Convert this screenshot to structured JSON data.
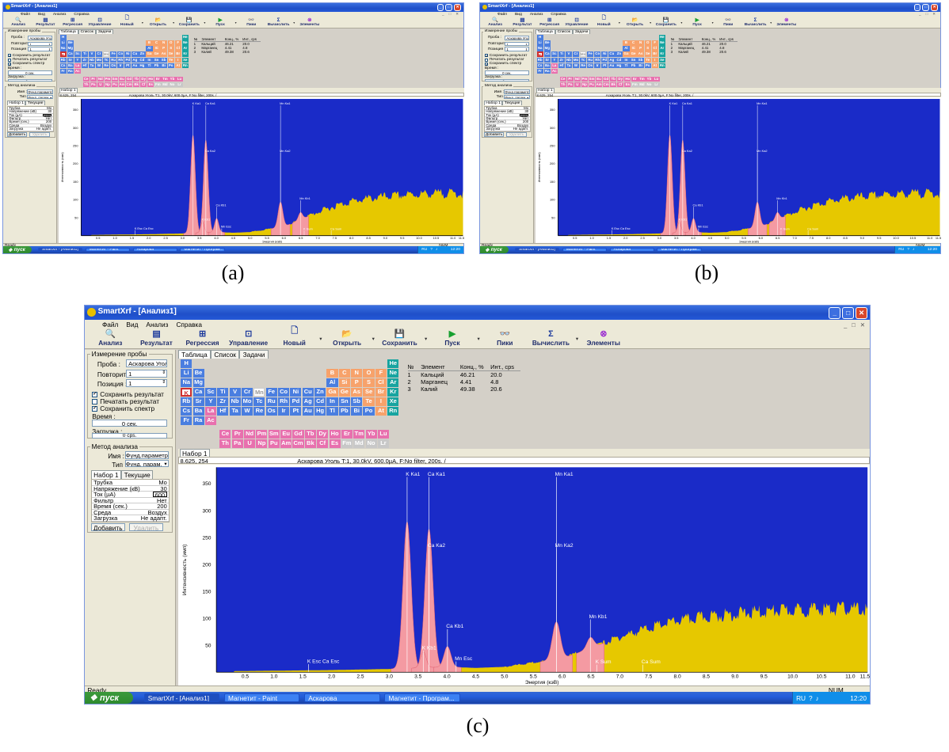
{
  "captions": {
    "a": "(a)",
    "b": "(b)",
    "c": "(c)"
  },
  "app": {
    "title": "SmartXrf - [Анализ1]",
    "window_buttons": {
      "minimize": "_",
      "maximize": "□",
      "close": "✕"
    },
    "mdi_controls": [
      "_",
      "□",
      "✕"
    ],
    "menu": [
      "Файл",
      "Вид",
      "Анализ",
      "Справка"
    ],
    "toolbar": [
      {
        "label": "Анализ",
        "icon": "magnifier-icon",
        "glyph": "🔍",
        "dropdown": false
      },
      {
        "label": "Результат",
        "icon": "results-icon",
        "glyph": "▤",
        "dropdown": false
      },
      {
        "label": "Регрессия",
        "icon": "regression-icon",
        "glyph": "⊞",
        "dropdown": false
      },
      {
        "label": "Управление",
        "icon": "control-icon",
        "glyph": "⊡",
        "dropdown": false
      },
      {
        "label": "Новый",
        "icon": "new-document-icon",
        "glyph": "🗋",
        "dropdown": true
      },
      {
        "label": "Открыть",
        "icon": "open-folder-icon",
        "glyph": "📂",
        "dropdown": true
      },
      {
        "label": "Сохранить",
        "icon": "save-icon",
        "glyph": "💾",
        "dropdown": true
      },
      {
        "label": "Пуск",
        "icon": "play-icon",
        "glyph": "▶",
        "dropdown": true
      },
      {
        "label": "Пики",
        "icon": "binoculars-icon",
        "glyph": "👓",
        "dropdown": false
      },
      {
        "label": "Вычислить",
        "icon": "sigma-icon",
        "glyph": "Σ",
        "dropdown": true
      },
      {
        "label": "Элементы",
        "icon": "elements-icon",
        "glyph": "⊗",
        "dropdown": false
      }
    ],
    "measure": {
      "group_title": "Измерение пробы",
      "sample_label": "Проба :",
      "sample_value": "Аскарова Уголь",
      "repeat_label": "Повторить :",
      "repeat_value": "1",
      "position_label": "Позиция :",
      "position_value": "1",
      "save_result": {
        "label": "Сохранить результат",
        "checked": true
      },
      "print_result": {
        "label": "Печатать результат",
        "checked": false
      },
      "save_spectrum": {
        "label": "Сохранить спектр",
        "checked": true
      },
      "time_label": "Время :",
      "time_value": "0 сек.",
      "load_label": "Загрузка :",
      "load_value": "0 cps."
    },
    "method": {
      "group_title": "Метод анализа",
      "name_label": "Имя :",
      "name_value": "Фунд.параметр",
      "type_label": "Тип :",
      "type_value": "Фунд. парам.",
      "tabs": [
        "Набор 1",
        "Текущие"
      ],
      "params": [
        {
          "label": "Трубка",
          "value": "Mo"
        },
        {
          "label": "Напряжение (кВ)",
          "value": "30"
        },
        {
          "label": "Ток (µA)",
          "value": "600"
        },
        {
          "label": "Фильтр",
          "value": "Нет"
        },
        {
          "label": "Время (сек.)",
          "value": "200"
        },
        {
          "label": "Среда",
          "value": "Воздух"
        },
        {
          "label": "Загрузка",
          "value": "Не адапт."
        }
      ],
      "add_button": "Добавить",
      "delete_button": "Удалить"
    },
    "main_tabs": [
      "Таблица",
      "Список",
      "Задачи"
    ],
    "periodic": {
      "main": [
        {
          "s": "H",
          "r": 0,
          "c": 0,
          "k": "blue"
        },
        {
          "s": "He",
          "r": 0,
          "c": 17,
          "k": "teal"
        },
        {
          "s": "Li",
          "r": 1,
          "c": 0,
          "k": "blue"
        },
        {
          "s": "Be",
          "r": 1,
          "c": 1,
          "k": "blue"
        },
        {
          "s": "B",
          "r": 1,
          "c": 12,
          "k": "orange"
        },
        {
          "s": "C",
          "r": 1,
          "c": 13,
          "k": "orange"
        },
        {
          "s": "N",
          "r": 1,
          "c": 14,
          "k": "orange"
        },
        {
          "s": "O",
          "r": 1,
          "c": 15,
          "k": "orange"
        },
        {
          "s": "F",
          "r": 1,
          "c": 16,
          "k": "orange"
        },
        {
          "s": "Ne",
          "r": 1,
          "c": 17,
          "k": "teal"
        },
        {
          "s": "Na",
          "r": 2,
          "c": 0,
          "k": "blue"
        },
        {
          "s": "Mg",
          "r": 2,
          "c": 1,
          "k": "blue"
        },
        {
          "s": "Al",
          "r": 2,
          "c": 12,
          "k": "blue"
        },
        {
          "s": "Si",
          "r": 2,
          "c": 13,
          "k": "orange"
        },
        {
          "s": "P",
          "s2": "",
          "r": 2,
          "c": 14,
          "k": "orange"
        },
        {
          "s": "S",
          "r": 2,
          "c": 15,
          "k": "orange"
        },
        {
          "s": "Cl",
          "r": 2,
          "c": 16,
          "k": "orange"
        },
        {
          "s": "Ar",
          "r": 2,
          "c": 17,
          "k": "teal"
        },
        {
          "s": "K",
          "r": 3,
          "c": 0,
          "k": "sel"
        },
        {
          "s": "Ca",
          "r": 3,
          "c": 1,
          "k": "blue"
        },
        {
          "s": "Sc",
          "r": 3,
          "c": 2,
          "k": "blue"
        },
        {
          "s": "Ti",
          "r": 3,
          "c": 3,
          "k": "blue"
        },
        {
          "s": "V",
          "r": 3,
          "c": 4,
          "k": "blue"
        },
        {
          "s": "Cr",
          "r": 3,
          "c": 5,
          "k": "blue"
        },
        {
          "s": "Mn",
          "r": 3,
          "c": 6,
          "k": "white"
        },
        {
          "s": "Fe",
          "r": 3,
          "c": 7,
          "k": "blue"
        },
        {
          "s": "Co",
          "r": 3,
          "c": 8,
          "k": "blue"
        },
        {
          "s": "Ni",
          "r": 3,
          "c": 9,
          "k": "blue"
        },
        {
          "s": "Cu",
          "r": 3,
          "c": 10,
          "k": "blue"
        },
        {
          "s": "Zn",
          "r": 3,
          "c": 11,
          "k": "blue"
        },
        {
          "s": "Ga",
          "r": 3,
          "c": 12,
          "k": "orange"
        },
        {
          "s": "Ge",
          "r": 3,
          "c": 13,
          "k": "orange"
        },
        {
          "s": "As",
          "r": 3,
          "c": 14,
          "k": "orange"
        },
        {
          "s": "Se",
          "r": 3,
          "c": 15,
          "k": "orange"
        },
        {
          "s": "Br",
          "r": 3,
          "c": 16,
          "k": "orange"
        },
        {
          "s": "Kr",
          "r": 3,
          "c": 17,
          "k": "teal"
        },
        {
          "s": "Rb",
          "r": 4,
          "c": 0,
          "k": "blue"
        },
        {
          "s": "Sr",
          "r": 4,
          "c": 1,
          "k": "blue"
        },
        {
          "s": "Y",
          "r": 4,
          "c": 2,
          "k": "blue"
        },
        {
          "s": "Zr",
          "r": 4,
          "c": 3,
          "k": "blue"
        },
        {
          "s": "Nb",
          "r": 4,
          "c": 4,
          "k": "blue"
        },
        {
          "s": "Mo",
          "r": 4,
          "c": 5,
          "k": "blue"
        },
        {
          "s": "Tc",
          "r": 4,
          "c": 6,
          "k": "blue"
        },
        {
          "s": "Ru",
          "r": 4,
          "c": 7,
          "k": "blue"
        },
        {
          "s": "Rh",
          "r": 4,
          "c": 8,
          "k": "blue"
        },
        {
          "s": "Pd",
          "r": 4,
          "c": 9,
          "k": "blue"
        },
        {
          "s": "Ag",
          "r": 4,
          "c": 10,
          "k": "blue"
        },
        {
          "s": "Cd",
          "r": 4,
          "c": 11,
          "k": "blue"
        },
        {
          "s": "In",
          "r": 4,
          "c": 12,
          "k": "blue"
        },
        {
          "s": "Sn",
          "r": 4,
          "c": 13,
          "k": "blue"
        },
        {
          "s": "Sb",
          "r": 4,
          "c": 14,
          "k": "blue"
        },
        {
          "s": "Te",
          "r": 4,
          "c": 15,
          "k": "orange"
        },
        {
          "s": "I",
          "r": 4,
          "c": 16,
          "k": "orange"
        },
        {
          "s": "Xe",
          "r": 4,
          "c": 17,
          "k": "teal"
        },
        {
          "s": "Cs",
          "r": 5,
          "c": 0,
          "k": "blue"
        },
        {
          "s": "Ba",
          "r": 5,
          "c": 1,
          "k": "blue"
        },
        {
          "s": "La",
          "r": 5,
          "c": 2,
          "k": "pink"
        },
        {
          "s": "Hf",
          "r": 5,
          "c": 3,
          "k": "blue"
        },
        {
          "s": "Ta",
          "r": 5,
          "c": 4,
          "k": "blue"
        },
        {
          "s": "W",
          "r": 5,
          "c": 5,
          "k": "blue"
        },
        {
          "s": "Re",
          "r": 5,
          "c": 6,
          "k": "blue"
        },
        {
          "s": "Os",
          "r": 5,
          "c": 7,
          "k": "blue"
        },
        {
          "s": "Ir",
          "r": 5,
          "c": 8,
          "k": "blue"
        },
        {
          "s": "Pt",
          "r": 5,
          "c": 9,
          "k": "blue"
        },
        {
          "s": "Au",
          "r": 5,
          "c": 10,
          "k": "blue"
        },
        {
          "s": "Hg",
          "r": 5,
          "c": 11,
          "k": "blue"
        },
        {
          "s": "Tl",
          "r": 5,
          "c": 12,
          "k": "blue"
        },
        {
          "s": "Pb",
          "r": 5,
          "c": 13,
          "k": "blue"
        },
        {
          "s": "Bi",
          "r": 5,
          "c": 14,
          "k": "blue"
        },
        {
          "s": "Po",
          "r": 5,
          "c": 15,
          "k": "blue"
        },
        {
          "s": "At",
          "r": 5,
          "c": 16,
          "k": "orange"
        },
        {
          "s": "Rn",
          "r": 5,
          "c": 17,
          "k": "teal"
        },
        {
          "s": "Fr",
          "r": 6,
          "c": 0,
          "k": "blue"
        },
        {
          "s": "Ra",
          "r": 6,
          "c": 1,
          "k": "blue"
        },
        {
          "s": "Ac",
          "r": 6,
          "c": 2,
          "k": "pink"
        }
      ],
      "lanth": [
        "Ce",
        "Pr",
        "Nd",
        "Pm",
        "Sm",
        "Eu",
        "Gd",
        "Tb",
        "Dy",
        "Ho",
        "Er",
        "Tm",
        "Yb",
        "Lu"
      ],
      "actin": [
        "Th",
        "Pa",
        "U",
        "Np",
        "Pu",
        "Am",
        "Cm",
        "Bk",
        "Cf",
        "Es",
        "Fm",
        "Md",
        "No",
        "Lr"
      ]
    },
    "results": {
      "headers": [
        "№",
        "Элемент",
        "Конц., %",
        "Инт., cps"
      ],
      "rows": [
        [
          "1",
          "Кальций",
          "46.21",
          "20.0"
        ],
        [
          "2",
          "Марганец",
          "4.41",
          "4.8"
        ],
        [
          "3",
          "Калий",
          "49.38",
          "20.6"
        ]
      ]
    },
    "spectrum": {
      "tab": "Набор 1",
      "cursor": "8.625, 254",
      "info": "Аскарова Уголь  T:1, 30.0kV, 600.0µA, F:No filter, 200s. /"
    },
    "status": {
      "left": "Ready",
      "right": "NUM"
    },
    "taskbar": {
      "start": "пуск",
      "tasks": [
        {
          "label": "SmartXrf - [Анализ1]",
          "active": true
        },
        {
          "label": "Магнетит - Paint",
          "active": false
        },
        {
          "label": "Аскарова",
          "active": false
        },
        {
          "label": "Магнетит - Програм...",
          "active": false
        }
      ],
      "lang": "RU",
      "clock": "12:20"
    },
    "colors": {
      "plot_bg": "#1a2bc8",
      "background": "#e6c800",
      "peaks": "#f49aa2",
      "marker": "#ffffff",
      "axis_text": "#000000"
    }
  },
  "chart_data": {
    "type": "area",
    "title": "",
    "xlabel": "Энергия (кэВ)",
    "ylabel": "Интенсивность (имп)",
    "xlim": [
      0,
      11.3
    ],
    "ylim": [
      0,
      380
    ],
    "xticks": [
      "0.5",
      "1.0",
      "1.5",
      "2.0",
      "2.5",
      "3.0",
      "3.5",
      "4.0",
      "4.5",
      "5.0",
      "5.5",
      "6.0",
      "6.5",
      "7.0",
      "7.5",
      "8.0",
      "8.5",
      "9.0",
      "9.5",
      "10.0",
      "10.5",
      "11.0",
      "11.5"
    ],
    "yticks": [
      "50",
      "100",
      "150",
      "200",
      "250",
      "300",
      "350"
    ],
    "peaks": [
      {
        "name": "K Ka1",
        "energy": 3.31,
        "height": 272,
        "width": 0.07
      },
      {
        "name": "Ca Ka1",
        "energy": 3.69,
        "height": 257,
        "width": 0.07
      },
      {
        "name": "K Kb1",
        "energy": 3.59,
        "height": 30,
        "width": 0.05
      },
      {
        "name": "Ca Kb1",
        "energy": 4.01,
        "height": 38,
        "width": 0.06
      },
      {
        "name": "Mn Ka1",
        "energy": 5.9,
        "height": 70,
        "width": 0.07
      },
      {
        "name": "Mn Kb1",
        "energy": 6.49,
        "height": 20,
        "width": 0.06
      }
    ],
    "background": [
      [
        0.3,
        2
      ],
      [
        2.0,
        4
      ],
      [
        3.0,
        6
      ],
      [
        4.0,
        10
      ],
      [
        4.5,
        8
      ],
      [
        5.0,
        10
      ],
      [
        6.0,
        25
      ],
      [
        6.5,
        45
      ],
      [
        7.0,
        65
      ],
      [
        7.5,
        82
      ],
      [
        8.0,
        95
      ],
      [
        8.5,
        103
      ],
      [
        9.0,
        108
      ],
      [
        9.5,
        112
      ],
      [
        10.0,
        115
      ],
      [
        10.5,
        117
      ],
      [
        11.0,
        118
      ],
      [
        11.3,
        115
      ]
    ],
    "markers": [
      {
        "label": "K Ka1",
        "energy": 3.31,
        "top": 362
      },
      {
        "label": "Ca Ka1",
        "energy": 3.69,
        "top": 362
      },
      {
        "label": "Mn Ka1",
        "energy": 5.9,
        "top": 362
      },
      {
        "label": "Ca Ka2",
        "energy": 3.69,
        "top": 230
      },
      {
        "label": "Mn Ka2",
        "energy": 5.9,
        "top": 230
      },
      {
        "label": "Ca Kb1",
        "energy": 4.01,
        "top": 80
      },
      {
        "label": "K Kb1",
        "energy": 3.59,
        "top": 40
      },
      {
        "label": "Mn Kb1",
        "energy": 6.49,
        "top": 98
      },
      {
        "label": "Mn Esc",
        "energy": 4.16,
        "top": 20
      },
      {
        "label": "K Esc Ca Esc",
        "energy": 1.6,
        "top": 15
      },
      {
        "label": "K Sum",
        "energy": 6.6,
        "top": 14
      },
      {
        "label": "Ca Sum",
        "energy": 7.4,
        "top": 14
      }
    ]
  }
}
